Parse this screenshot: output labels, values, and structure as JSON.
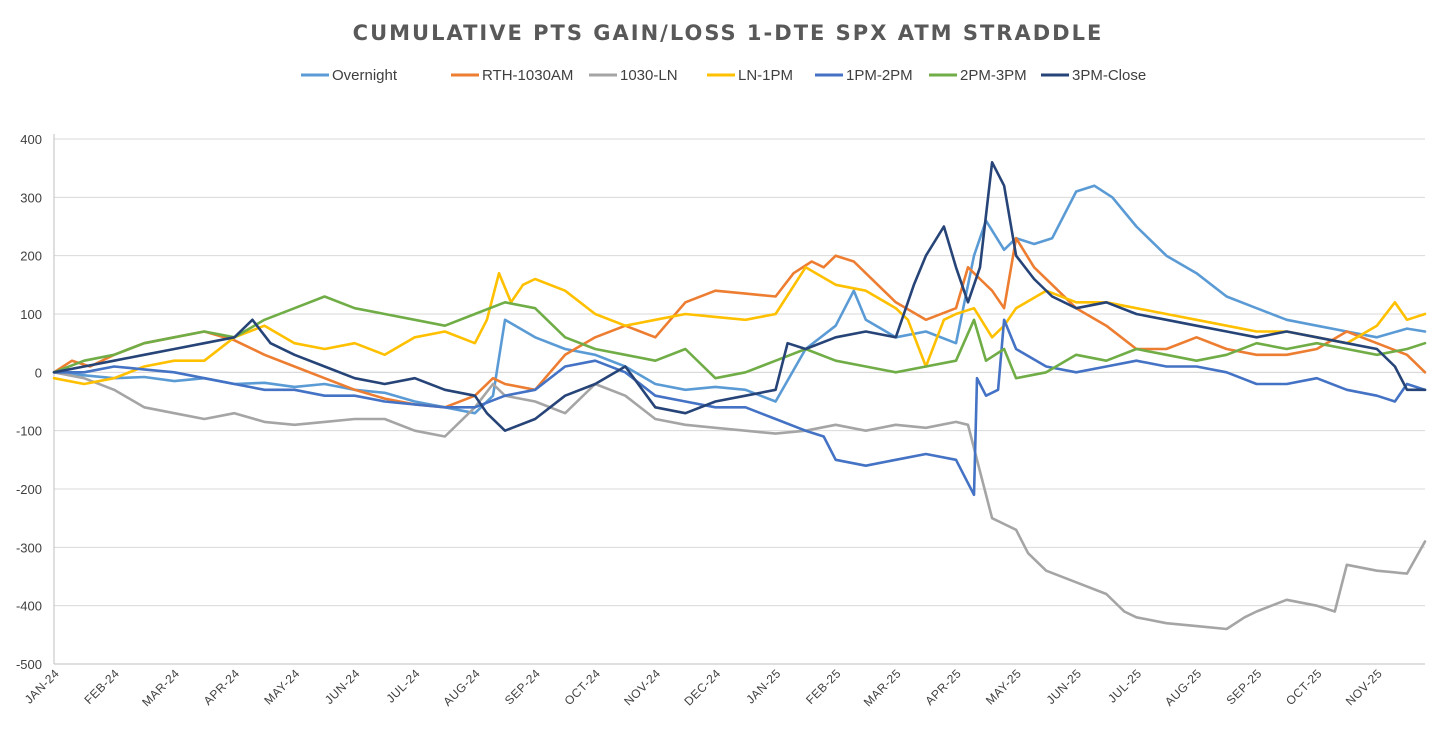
{
  "chart_data": {
    "type": "line",
    "title": "CUMULATIVE  PTS  GAIN/LOSS  1-DTE  SPX  ATM  STRADDLE",
    "xlabel": "",
    "ylabel": "",
    "ylim": [
      -500,
      400
    ],
    "yticks": [
      400,
      300,
      200,
      100,
      0,
      -100,
      -200,
      -300,
      -400,
      -500
    ],
    "xlim": [
      0,
      22.8
    ],
    "grid": true,
    "legend_position": "top",
    "categories": [
      "JAN-24",
      "FEB-24",
      "MAR-24",
      "APR-24",
      "MAY-24",
      "JUN-24",
      "JUL-24",
      "AUG-24",
      "SEP-24",
      "OCT-24",
      "NOV-24",
      "DEC-24",
      "JAN-25",
      "FEB-25",
      "MAR-25",
      "APR-25",
      "MAY-25",
      "JUN-25",
      "JUL-25",
      "AUG-25",
      "SEP-25",
      "OCT-25",
      "NOV-25"
    ],
    "series": [
      {
        "name": "Overnight",
        "color": "#5B9BD5",
        "x": [
          0,
          0.5,
          1,
          1.5,
          2,
          2.5,
          3,
          3.5,
          4,
          4.5,
          5,
          5.5,
          6,
          6.5,
          7,
          7.3,
          7.5,
          8,
          8.5,
          9,
          9.5,
          10,
          10.5,
          11,
          11.5,
          12,
          12.5,
          13,
          13.3,
          13.5,
          14,
          14.5,
          15,
          15.3,
          15.5,
          15.8,
          16,
          16.3,
          16.6,
          17,
          17.3,
          17.6,
          18,
          18.5,
          19,
          19.5,
          20,
          20.5,
          21,
          21.5,
          22,
          22.5,
          22.8
        ],
        "values": [
          0,
          -5,
          -10,
          -8,
          -15,
          -10,
          -20,
          -18,
          -25,
          -20,
          -30,
          -35,
          -50,
          -60,
          -70,
          -40,
          90,
          60,
          40,
          30,
          10,
          -20,
          -30,
          -25,
          -30,
          -50,
          40,
          80,
          140,
          90,
          60,
          70,
          50,
          200,
          260,
          210,
          230,
          220,
          230,
          310,
          320,
          300,
          250,
          200,
          170,
          130,
          110,
          90,
          80,
          70,
          60,
          75,
          70
        ]
      },
      {
        "name": "RTH-1030AM",
        "color": "#ED7D31",
        "x": [
          0,
          0.3,
          0.6,
          1,
          1.5,
          2,
          2.5,
          3,
          3.5,
          4,
          4.5,
          5,
          5.5,
          6,
          6.5,
          7,
          7.3,
          7.5,
          8,
          8.5,
          9,
          9.5,
          10,
          10.5,
          11,
          11.5,
          12,
          12.3,
          12.6,
          12.8,
          13,
          13.3,
          13.5,
          14,
          14.5,
          15,
          15.2,
          15.4,
          15.6,
          15.8,
          16,
          16.3,
          16.6,
          17,
          17.5,
          18,
          18.5,
          19,
          19.5,
          20,
          20.5,
          21,
          21.5,
          22,
          22.5,
          22.8
        ],
        "values": [
          0,
          20,
          10,
          30,
          50,
          60,
          70,
          55,
          30,
          10,
          -10,
          -30,
          -45,
          -55,
          -60,
          -40,
          -10,
          -20,
          -30,
          30,
          60,
          80,
          60,
          120,
          140,
          135,
          130,
          170,
          190,
          180,
          200,
          190,
          170,
          120,
          90,
          110,
          180,
          160,
          140,
          110,
          230,
          180,
          150,
          110,
          80,
          40,
          40,
          60,
          40,
          30,
          30,
          40,
          70,
          50,
          30,
          0
        ]
      },
      {
        "name": "1030-LN",
        "color": "#A5A5A5",
        "x": [
          0,
          0.5,
          1,
          1.5,
          2,
          2.5,
          3,
          3.5,
          4,
          4.5,
          5,
          5.5,
          6,
          6.5,
          7,
          7.3,
          7.5,
          8,
          8.5,
          9,
          9.5,
          10,
          10.5,
          11,
          11.5,
          12,
          12.5,
          13,
          13.5,
          14,
          14.5,
          15,
          15.2,
          15.4,
          15.6,
          15.8,
          16,
          16.2,
          16.5,
          17,
          17.5,
          17.8,
          18,
          18.5,
          19,
          19.5,
          19.8,
          20,
          20.5,
          21,
          21.3,
          21.5,
          22,
          22.5,
          22.8
        ],
        "values": [
          0,
          -10,
          -30,
          -60,
          -70,
          -80,
          -70,
          -85,
          -90,
          -85,
          -80,
          -80,
          -100,
          -110,
          -60,
          -20,
          -40,
          -50,
          -70,
          -20,
          -40,
          -80,
          -90,
          -95,
          -100,
          -105,
          -100,
          -90,
          -100,
          -90,
          -95,
          -85,
          -90,
          -170,
          -250,
          -260,
          -270,
          -310,
          -340,
          -360,
          -380,
          -410,
          -420,
          -430,
          -435,
          -440,
          -420,
          -410,
          -390,
          -400,
          -410,
          -330,
          -340,
          -345,
          -290
        ]
      },
      {
        "name": "LN-1PM",
        "color": "#FFC000",
        "x": [
          0,
          0.5,
          1,
          1.5,
          2,
          2.5,
          3,
          3.5,
          4,
          4.5,
          5,
          5.5,
          6,
          6.5,
          7,
          7.2,
          7.4,
          7.6,
          7.8,
          8,
          8.5,
          9,
          9.5,
          10,
          10.5,
          11,
          11.5,
          12,
          12.5,
          13,
          13.5,
          14,
          14.2,
          14.5,
          14.8,
          15,
          15.3,
          15.6,
          15.8,
          16,
          16.5,
          17,
          17.5,
          18,
          18.5,
          19,
          19.5,
          20,
          20.5,
          21,
          21.5,
          22,
          22.3,
          22.5,
          22.8
        ],
        "values": [
          -10,
          -20,
          -10,
          10,
          20,
          20,
          60,
          80,
          50,
          40,
          50,
          30,
          60,
          70,
          50,
          90,
          170,
          120,
          150,
          160,
          140,
          100,
          80,
          90,
          100,
          95,
          90,
          100,
          180,
          150,
          140,
          110,
          90,
          10,
          90,
          100,
          110,
          60,
          80,
          110,
          140,
          120,
          120,
          110,
          100,
          90,
          80,
          70,
          70,
          60,
          50,
          80,
          120,
          90,
          100
        ]
      },
      {
        "name": "1PM-2PM",
        "color": "#4472C4",
        "x": [
          0,
          0.5,
          1,
          1.5,
          2,
          2.5,
          3,
          3.5,
          4,
          4.5,
          5,
          5.5,
          6,
          6.5,
          7,
          7.5,
          8,
          8.5,
          9,
          9.5,
          10,
          10.5,
          11,
          11.5,
          12,
          12.5,
          12.8,
          13,
          13.5,
          14,
          14.5,
          15,
          15.3,
          15.35,
          15.5,
          15.7,
          15.8,
          16,
          16.5,
          17,
          17.5,
          18,
          18.5,
          19,
          19.5,
          20,
          20.5,
          21,
          21.5,
          22,
          22.3,
          22.5,
          22.8
        ],
        "values": [
          0,
          0,
          10,
          5,
          0,
          -10,
          -20,
          -30,
          -30,
          -40,
          -40,
          -50,
          -55,
          -60,
          -60,
          -40,
          -30,
          10,
          20,
          0,
          -40,
          -50,
          -60,
          -60,
          -80,
          -100,
          -110,
          -150,
          -160,
          -150,
          -140,
          -150,
          -210,
          -10,
          -40,
          -30,
          90,
          40,
          10,
          0,
          10,
          20,
          10,
          10,
          0,
          -20,
          -20,
          -10,
          -30,
          -40,
          -50,
          -20,
          -30
        ]
      },
      {
        "name": "2PM-3PM",
        "color": "#70AD47",
        "x": [
          0,
          0.5,
          1,
          1.5,
          2,
          2.5,
          3,
          3.5,
          4,
          4.5,
          5,
          5.5,
          6,
          6.5,
          7,
          7.5,
          8,
          8.5,
          9,
          9.5,
          10,
          10.5,
          11,
          11.5,
          12,
          12.5,
          13,
          13.5,
          14,
          14.5,
          15,
          15.3,
          15.5,
          15.8,
          16,
          16.5,
          17,
          17.5,
          18,
          18.5,
          19,
          19.5,
          20,
          20.5,
          21,
          21.5,
          22,
          22.5,
          22.8
        ],
        "values": [
          0,
          20,
          30,
          50,
          60,
          70,
          60,
          90,
          110,
          130,
          110,
          100,
          90,
          80,
          100,
          120,
          110,
          60,
          40,
          30,
          20,
          40,
          -10,
          0,
          20,
          40,
          20,
          10,
          0,
          10,
          20,
          90,
          20,
          40,
          -10,
          0,
          30,
          20,
          40,
          30,
          20,
          30,
          50,
          40,
          50,
          40,
          30,
          40,
          50
        ]
      },
      {
        "name": "3PM-Close",
        "color": "#264478",
        "x": [
          0,
          0.5,
          1,
          1.5,
          2,
          2.5,
          3,
          3.3,
          3.6,
          4,
          4.5,
          5,
          5.5,
          6,
          6.5,
          7,
          7.2,
          7.5,
          8,
          8.5,
          9,
          9.5,
          10,
          10.5,
          11,
          11.5,
          12,
          12.2,
          12.5,
          13,
          13.5,
          14,
          14.3,
          14.5,
          14.8,
          15,
          15.2,
          15.4,
          15.6,
          15.8,
          16,
          16.3,
          16.6,
          17,
          17.5,
          18,
          18.5,
          19,
          19.5,
          20,
          20.5,
          21,
          21.5,
          22,
          22.3,
          22.5,
          22.8
        ],
        "values": [
          0,
          10,
          20,
          30,
          40,
          50,
          60,
          90,
          50,
          30,
          10,
          -10,
          -20,
          -10,
          -30,
          -40,
          -70,
          -100,
          -80,
          -40,
          -20,
          10,
          -60,
          -70,
          -50,
          -40,
          -30,
          50,
          40,
          60,
          70,
          60,
          150,
          200,
          250,
          180,
          120,
          180,
          360,
          320,
          200,
          160,
          130,
          110,
          120,
          100,
          90,
          80,
          70,
          60,
          70,
          60,
          50,
          40,
          10,
          -30,
          -30
        ]
      }
    ]
  }
}
